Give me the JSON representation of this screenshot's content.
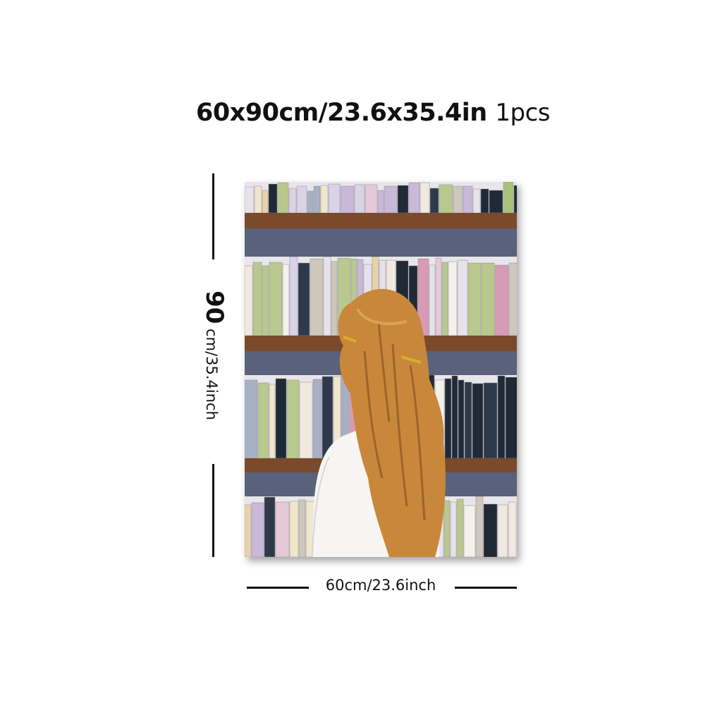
{
  "product": {
    "size_title": "60x90cm/23.6x35.4in",
    "quantity": "1pcs"
  },
  "dimensions": {
    "height_number": "90",
    "height_rest": " cm/35.4inch",
    "width_label": "60cm/23.6inch"
  },
  "colors": {
    "shelf_wood": "#7a4a2a",
    "shelf_shadow": "#3f4a66",
    "hair": "#c8873a",
    "background": "#ffffff"
  }
}
